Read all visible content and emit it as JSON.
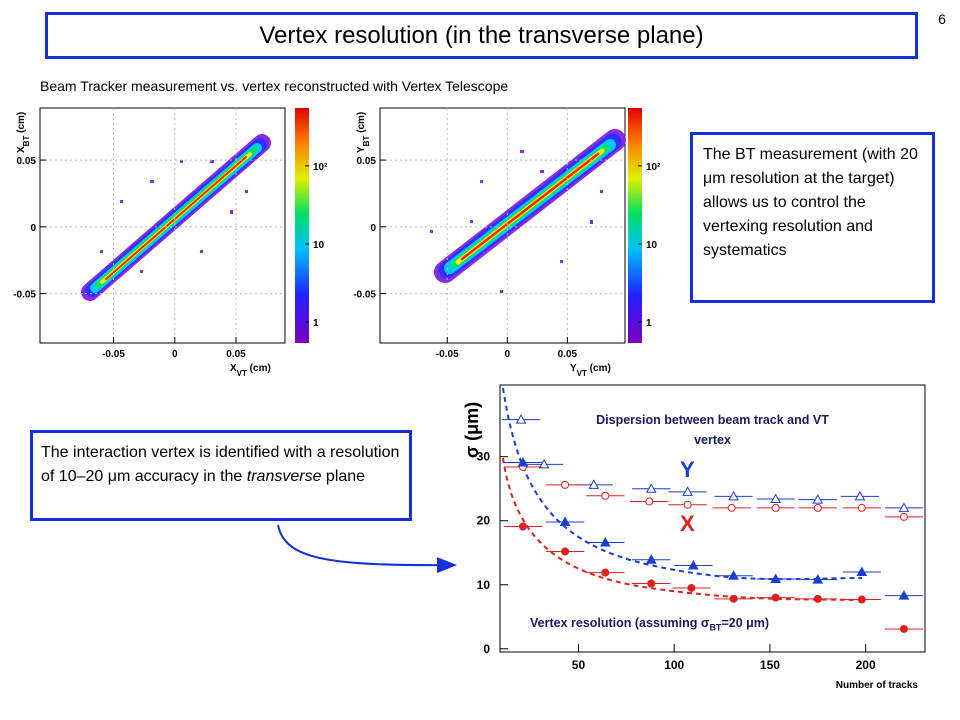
{
  "page_number": "6",
  "title": "Vertex resolution (in the transverse plane)",
  "subtitle": "Beam Tracker measurement vs. vertex reconstructed with Vertex Telescope",
  "note_right": "The BT measurement (with 20 μm resolution at the target) allows us to control the vertexing resolution and systematics",
  "note_left": [
    "The interaction vertex is identified with a resolution of 10–20 μm accuracy in the ",
    "transverse",
    " plane"
  ],
  "histograms": [
    {
      "xlabel": [
        "X",
        "VT",
        " (cm)"
      ],
      "ylabel": [
        "X",
        "BT",
        " (cm)"
      ],
      "xlim": [
        -0.11,
        0.09
      ],
      "ylim": [
        -0.087,
        0.089
      ],
      "xticks": [
        -0.05,
        0,
        0.05
      ],
      "yticks": [
        -0.05,
        0,
        0.05
      ],
      "clim": [
        0.54,
        550
      ],
      "log_colorbar": true,
      "cticks": [
        1,
        10,
        {
          "value": 100,
          "label": "10²"
        }
      ]
    },
    {
      "xlabel": [
        "Y",
        "VT",
        " (cm)"
      ],
      "ylabel": [
        "Y",
        "BT",
        " (cm)"
      ],
      "xlim": [
        -0.106,
        0.098
      ],
      "ylim": [
        -0.087,
        0.089
      ],
      "xticks": [
        -0.05,
        0,
        0.05
      ],
      "yticks": [
        -0.05,
        0,
        0.05
      ],
      "clim": [
        0.54,
        550
      ],
      "log_colorbar": true,
      "cticks": [
        1,
        10,
        {
          "value": 100,
          "label": "10²"
        }
      ]
    }
  ],
  "chart_data": {
    "type": "scatter",
    "title": "Dispersion between beam track and VT vertex",
    "annotation": [
      "Vertex resolution (assuming σ",
      "BT",
      "=20 μm)"
    ],
    "ylabel": "σ (μm)",
    "xlabel": "Number of tracks",
    "labels": [
      {
        "text": "Y",
        "color": "#1a3fd0"
      },
      {
        "text": "X",
        "color": "#e02020"
      }
    ],
    "xlim": [
      9,
      231
    ],
    "ylim": [
      -0.5,
      41.2
    ],
    "xticks": [
      50,
      100,
      150,
      200
    ],
    "yticks": [
      0,
      10,
      20,
      30
    ],
    "series": [
      {
        "color": "#1a3fd0",
        "marker": "triangle",
        "filled": false,
        "xerr": 10,
        "x": [
          20,
          32,
          58,
          88,
          107,
          131,
          153,
          175,
          197,
          220
        ],
        "values": [
          35.8,
          28.8,
          25.6,
          25.0,
          24.5,
          23.8,
          23.4,
          23.3,
          23.8,
          22.0
        ]
      },
      {
        "color": "#e02020",
        "marker": "circle",
        "filled": false,
        "xerr": 10,
        "x": [
          21,
          43,
          64,
          87,
          107,
          130,
          153,
          175,
          198,
          220
        ],
        "values": [
          28.4,
          25.6,
          23.9,
          23.0,
          22.5,
          22.0,
          22.0,
          22.0,
          22.0,
          20.6
        ]
      },
      {
        "color": "#1a3fd0",
        "marker": "triangle",
        "filled": true,
        "xerr": 10,
        "x": [
          21,
          43,
          64,
          88,
          110,
          131,
          153,
          175,
          198,
          220
        ],
        "values": [
          29.1,
          19.8,
          16.6,
          13.9,
          13.0,
          11.4,
          10.9,
          10.8,
          12.0,
          8.3
        ]
      },
      {
        "color": "#e02020",
        "marker": "circle",
        "filled": true,
        "xerr": 10,
        "x": [
          21,
          43,
          64,
          88,
          109,
          131,
          153,
          175,
          198,
          220
        ],
        "values": [
          19.1,
          15.2,
          11.9,
          10.2,
          9.5,
          7.8,
          8.0,
          7.8,
          7.7,
          3.1
        ]
      }
    ]
  }
}
